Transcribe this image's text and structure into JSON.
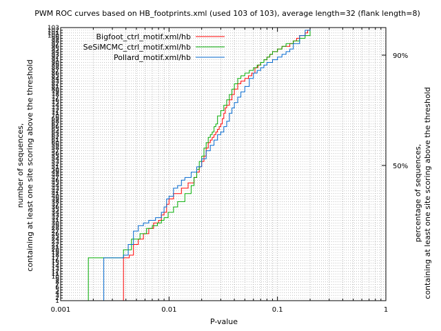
{
  "chart_data": {
    "type": "line",
    "title": "PWM ROC curves based on HB_footprints.xml (used 103 of 103), average length=32 (flank length=8)",
    "xlabel": "P-value",
    "ylabel_left_line1": "number of sequences,",
    "ylabel_left_line2": "containing at least one site scoring above the threshold",
    "ylabel_right_line1": "percentage of sequences,",
    "ylabel_right_line2": "containing at least one site scoring above the threshold",
    "x_scale": "log",
    "xlim": [
      0.001,
      1
    ],
    "ylim": [
      1,
      103
    ],
    "x_ticks": [
      0.001,
      0.01,
      0.1,
      1
    ],
    "x_tick_labels": [
      "0.001",
      "0.01",
      "0.1",
      "1"
    ],
    "y_tick_labels": [
      "1",
      "2",
      "3",
      "4",
      "5",
      "6",
      "7",
      "8",
      "9",
      "10",
      "11",
      "12",
      "13",
      "14",
      "15",
      "16",
      "17",
      "18",
      "19",
      "20",
      "21",
      "22",
      "23",
      "24",
      "25",
      "26",
      "27",
      "28",
      "29",
      "30",
      "31",
      "32",
      "33",
      "34",
      "35",
      "36",
      "37",
      "38",
      "39",
      "40",
      "41",
      "42",
      "43",
      "44",
      "45",
      "46",
      "47",
      "48",
      "49",
      "50",
      "51",
      "52",
      "53",
      "54",
      "55",
      "56",
      "57",
      "58",
      "59",
      "60",
      "61",
      "62",
      "63",
      "64",
      "65",
      "66",
      "67",
      "68",
      "69",
      "70",
      "71",
      "72",
      "73",
      "74",
      "75",
      "76",
      "77",
      "78",
      "79",
      "80",
      "81",
      "82",
      "83",
      "84",
      "85",
      "86",
      "87",
      "88",
      "89",
      "90",
      "91",
      "92",
      "93",
      "94",
      "95",
      "96",
      "97",
      "98",
      "99",
      "100",
      "101",
      "102",
      "103"
    ],
    "right_ticks": [
      {
        "value": 51.5,
        "label": "50%"
      },
      {
        "value": 92.7,
        "label": "90%"
      }
    ],
    "grid": true,
    "legend_position": "top",
    "series": [
      {
        "name": "Bigfoot_ctrl_motif.xml/hb",
        "color": "#ff0000",
        "x": [
          0.0018,
          0.0038,
          0.0043,
          0.0047,
          0.0052,
          0.0058,
          0.0065,
          0.0072,
          0.008,
          0.0085,
          0.009,
          0.0095,
          0.01,
          0.011,
          0.013,
          0.015,
          0.017,
          0.018,
          0.019,
          0.02,
          0.021,
          0.022,
          0.023,
          0.024,
          0.025,
          0.026,
          0.027,
          0.028,
          0.029,
          0.03,
          0.031,
          0.032,
          0.033,
          0.034,
          0.036,
          0.038,
          0.04,
          0.043,
          0.046,
          0.05,
          0.054,
          0.058,
          0.062,
          0.066,
          0.07,
          0.075,
          0.08,
          0.085,
          0.09,
          0.095,
          0.1,
          0.11,
          0.12,
          0.13,
          0.14,
          0.15,
          0.16,
          0.17,
          0.18,
          0.19,
          0.2
        ],
        "y": [
          1,
          17,
          18,
          22,
          24,
          26,
          28,
          30,
          31,
          33,
          34,
          37,
          39,
          41,
          43,
          45,
          47,
          49,
          51,
          53,
          55,
          58,
          60,
          61,
          62,
          63,
          64,
          65,
          66,
          67,
          69,
          71,
          73,
          74,
          76,
          78,
          80,
          82,
          83,
          84,
          85,
          86,
          88,
          89,
          90,
          91,
          92,
          93,
          94,
          94,
          95,
          96,
          96,
          97,
          98,
          99,
          100,
          100,
          101,
          102,
          103
        ]
      },
      {
        "name": "SeSiMCMC_ctrl_motif.xml/hb",
        "color": "#00aa00",
        "x": [
          0.0017,
          0.0018,
          0.0038,
          0.0045,
          0.0054,
          0.0062,
          0.007,
          0.0078,
          0.0085,
          0.009,
          0.0098,
          0.011,
          0.012,
          0.014,
          0.016,
          0.017,
          0.018,
          0.019,
          0.02,
          0.021,
          0.022,
          0.023,
          0.024,
          0.025,
          0.026,
          0.027,
          0.028,
          0.03,
          0.032,
          0.034,
          0.036,
          0.038,
          0.04,
          0.043,
          0.046,
          0.05,
          0.055,
          0.06,
          0.065,
          0.07,
          0.075,
          0.08,
          0.085,
          0.09,
          0.1,
          0.11,
          0.12,
          0.14,
          0.16,
          0.18,
          0.2
        ],
        "y": [
          1,
          17,
          20,
          24,
          26,
          28,
          29,
          30,
          31,
          32,
          34,
          36,
          38,
          41,
          44,
          47,
          50,
          53,
          55,
          58,
          60,
          62,
          63,
          64,
          66,
          67,
          70,
          72,
          74,
          76,
          78,
          80,
          82,
          84,
          85,
          86,
          87,
          88,
          89,
          90,
          91,
          92,
          93,
          94,
          95,
          96,
          97,
          98,
          99,
          100,
          103
        ]
      },
      {
        "name": "Pollard_motif.xml/hb",
        "color": "#0066cc",
        "x": [
          0.0024,
          0.0025,
          0.0038,
          0.0042,
          0.0047,
          0.0052,
          0.0058,
          0.0065,
          0.0075,
          0.0085,
          0.009,
          0.0095,
          0.01,
          0.011,
          0.012,
          0.013,
          0.014,
          0.016,
          0.018,
          0.02,
          0.022,
          0.024,
          0.026,
          0.028,
          0.03,
          0.032,
          0.034,
          0.036,
          0.038,
          0.04,
          0.043,
          0.046,
          0.05,
          0.055,
          0.06,
          0.065,
          0.07,
          0.075,
          0.08,
          0.09,
          0.1,
          0.11,
          0.12,
          0.13,
          0.14,
          0.16,
          0.18,
          0.2
        ],
        "y": [
          1,
          17,
          18,
          22,
          27,
          29,
          30,
          31,
          32,
          34,
          36,
          39,
          40,
          43,
          44,
          46,
          47,
          49,
          51,
          54,
          57,
          59,
          61,
          63,
          64,
          66,
          68,
          71,
          73,
          75,
          77,
          79,
          81,
          84,
          86,
          87,
          88,
          89,
          90,
          91,
          92,
          93,
          94,
          95,
          97,
          100,
          102,
          103
        ]
      }
    ]
  }
}
